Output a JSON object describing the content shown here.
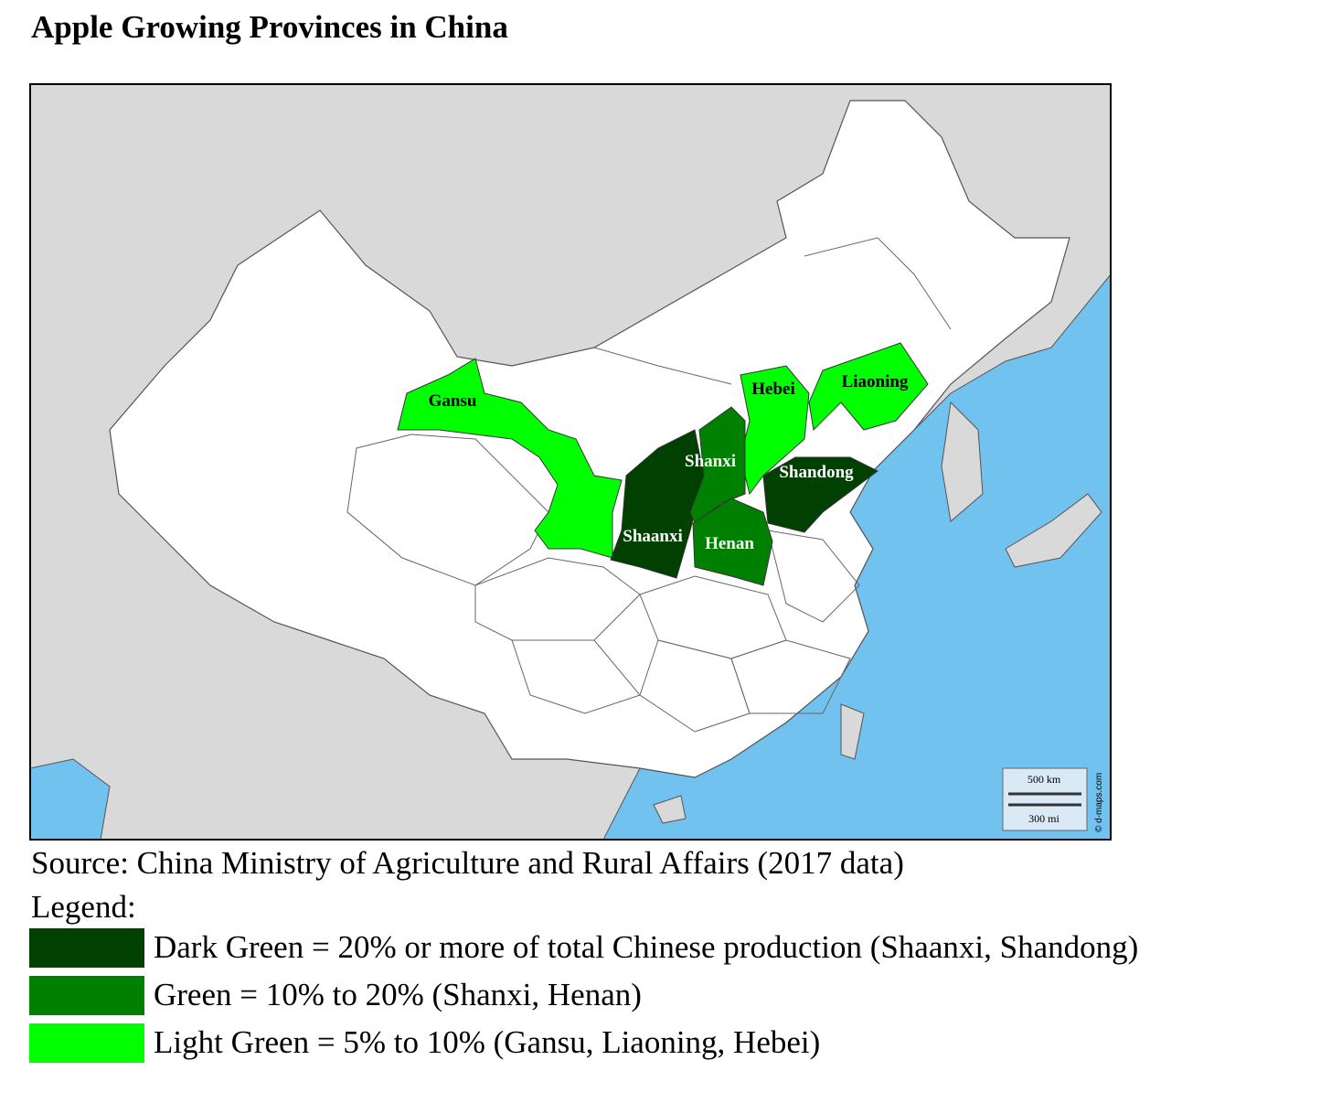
{
  "title": "Apple Growing Provinces in China",
  "map": {
    "labels": [
      "Gansu",
      "Hebei",
      "Liaoning",
      "Shanxi",
      "Shandong",
      "Shaanxi",
      "Henan"
    ],
    "scale": [
      "500 km",
      "300 mi"
    ],
    "credit": "© d-maps.com"
  },
  "source": "Source: China Ministry of Agriculture and Rural Affairs (2017 data)",
  "legend": {
    "heading": "Legend:",
    "items": [
      {
        "color": "#004000",
        "text": "Dark Green = 20% or more of total Chinese production (Shaanxi, Shandong)"
      },
      {
        "color": "#008000",
        "text": "Green = 10% to 20% (Shanxi, Henan)"
      },
      {
        "color": "#00ff00",
        "text": "Light Green = 5% to 10% (Gansu, Liaoning, Hebei)"
      }
    ]
  }
}
